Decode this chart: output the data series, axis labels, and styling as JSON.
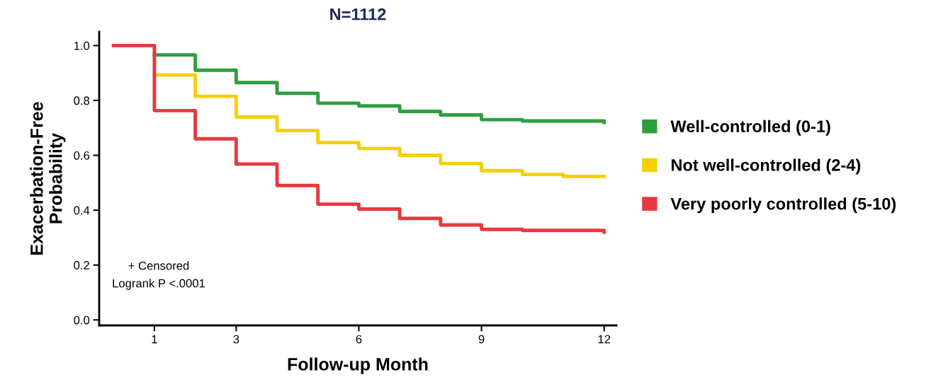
{
  "chart_data": {
    "type": "step",
    "title": "N=1112",
    "xlabel": "Follow-up Month",
    "ylabel": "Exacerbation-Free\nProbability",
    "x": [
      0,
      1,
      2,
      3,
      4,
      5,
      6,
      7,
      8,
      9,
      10,
      11,
      12
    ],
    "series": [
      {
        "name": "Well-controlled (0-1)",
        "color": "#2e9e3e",
        "values": [
          null,
          0.966,
          0.91,
          0.865,
          0.826,
          0.79,
          0.78,
          0.76,
          0.747,
          0.73,
          0.725,
          0.725,
          0.72
        ]
      },
      {
        "name": "Not well-controlled (2-4)",
        "color": "#f5d000",
        "values": [
          null,
          0.893,
          0.815,
          0.74,
          0.69,
          0.646,
          0.625,
          0.6,
          0.57,
          0.544,
          0.53,
          0.523,
          0.523
        ]
      },
      {
        "name": "Very poorly controlled (5-10)",
        "color": "#e8383f",
        "values": [
          1.0,
          0.763,
          0.66,
          0.568,
          0.49,
          0.422,
          0.404,
          0.37,
          0.346,
          0.33,
          0.326,
          0.326,
          0.32
        ]
      }
    ],
    "xlim": [
      -0.35,
      12.3
    ],
    "xticks": [
      1,
      3,
      6,
      9,
      12
    ],
    "ylim": [
      -0.02,
      1.05
    ],
    "yticks": [
      {
        "value": 0,
        "label": "0.0"
      },
      {
        "value": 0.2,
        "label": "0.2"
      },
      {
        "value": 0.4,
        "label": "0.4"
      },
      {
        "value": 0.6,
        "label": "0.6"
      },
      {
        "value": 0.8,
        "label": "0.8"
      },
      {
        "value": 1,
        "label": "1.0"
      }
    ],
    "annotations": [
      "+ Censored",
      "Logrank P <.0001"
    ],
    "legend": "right",
    "grid": false,
    "line_style": "solid",
    "marker": "none"
  }
}
